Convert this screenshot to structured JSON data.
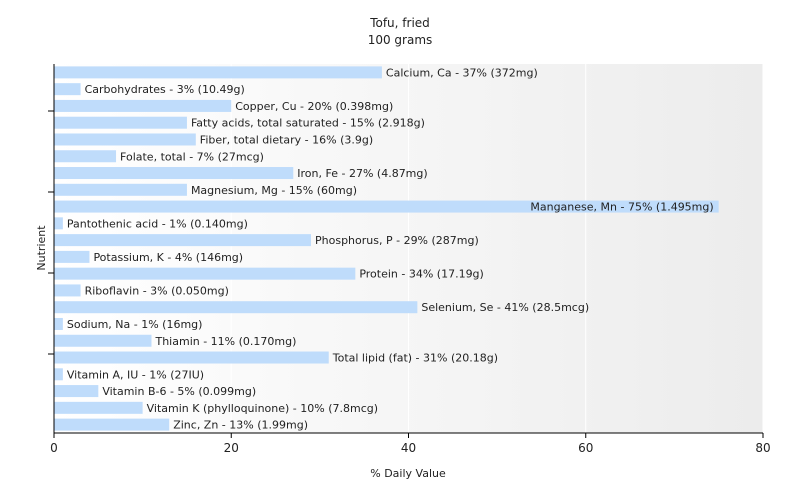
{
  "chart_data": {
    "type": "bar",
    "orientation": "horizontal",
    "title": "Tofu, fried",
    "subtitle": "100 grams",
    "xlabel": "% Daily Value",
    "ylabel": "Nutrient",
    "xlim": [
      0,
      80
    ],
    "x_ticks": [
      "0",
      "20",
      "40",
      "60",
      "80"
    ],
    "grid": true,
    "legend": "none",
    "bar_color": "#bfdcfb",
    "categories": [
      "Calcium, Ca",
      "Carbohydrates",
      "Copper, Cu",
      "Fatty acids, total saturated",
      "Fiber, total dietary",
      "Folate, total",
      "Iron, Fe",
      "Magnesium, Mg",
      "Manganese, Mn",
      "Pantothenic acid",
      "Phosphorus, P",
      "Potassium, K",
      "Protein",
      "Riboflavin",
      "Selenium, Se",
      "Sodium, Na",
      "Thiamin",
      "Total lipid (fat)",
      "Vitamin A, IU",
      "Vitamin B-6",
      "Vitamin K (phylloquinone)",
      "Zinc, Zn"
    ],
    "values": [
      37,
      3,
      20,
      15,
      16,
      7,
      27,
      15,
      75,
      1,
      29,
      4,
      34,
      3,
      41,
      1,
      11,
      31,
      1,
      5,
      10,
      13
    ],
    "labels": [
      "Calcium, Ca - 37% (372mg)",
      "Carbohydrates - 3% (10.49g)",
      "Copper, Cu - 20% (0.398mg)",
      "Fatty acids, total saturated - 15% (2.918g)",
      "Fiber, total dietary - 16% (3.9g)",
      "Folate, total - 7% (27mcg)",
      "Iron, Fe - 27% (4.87mg)",
      "Magnesium, Mg - 15% (60mg)",
      "Manganese, Mn - 75% (1.495mg)",
      "Pantothenic acid - 1% (0.140mg)",
      "Phosphorus, P - 29% (287mg)",
      "Potassium, K - 4% (146mg)",
      "Protein - 34% (17.19g)",
      "Riboflavin - 3% (0.050mg)",
      "Selenium, Se - 41% (28.5mcg)",
      "Sodium, Na - 1% (16mg)",
      "Thiamin - 11% (0.170mg)",
      "Total lipid (fat) - 31% (20.18g)",
      "Vitamin A, IU - 1% (27IU)",
      "Vitamin B-6 - 5% (0.099mg)",
      "Vitamin K (phylloquinone) - 10% (7.8mcg)",
      "Zinc, Zn - 13% (1.99mg)"
    ]
  }
}
